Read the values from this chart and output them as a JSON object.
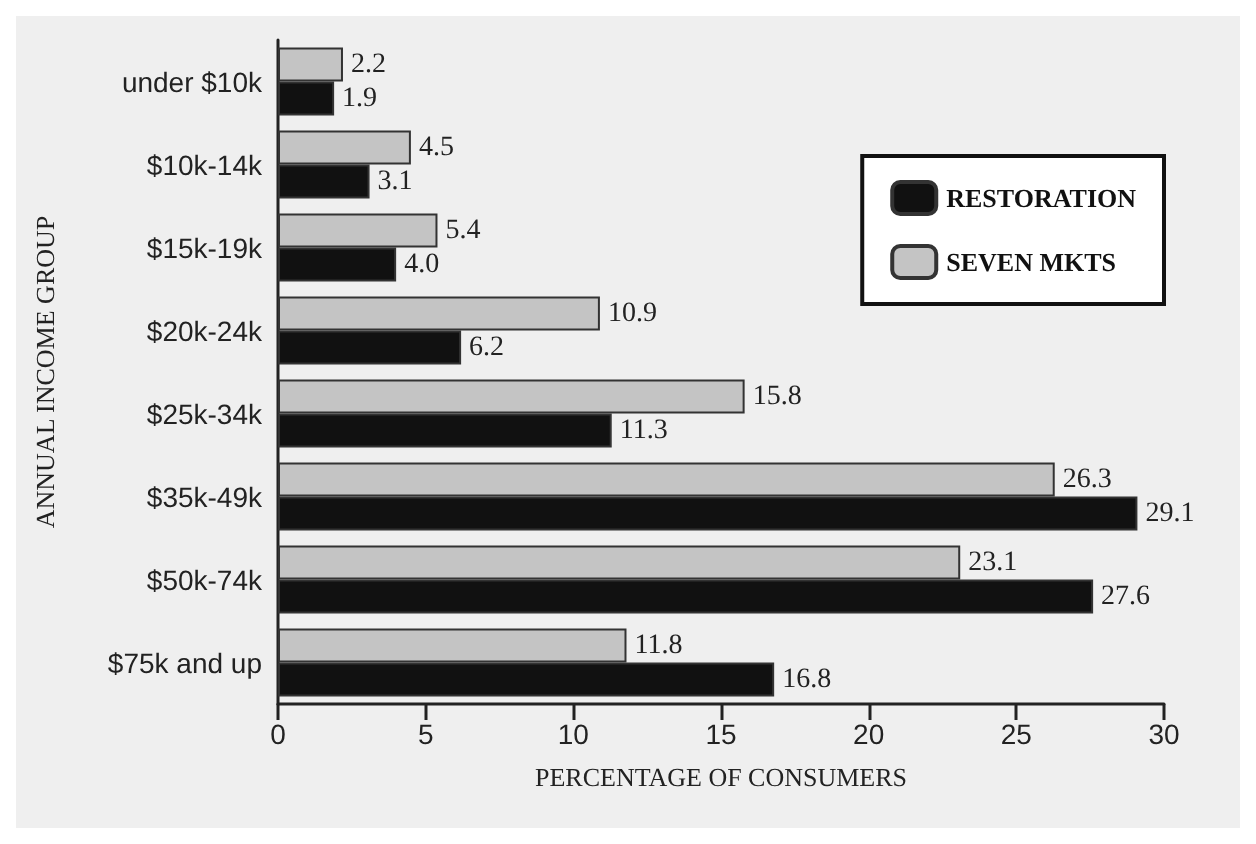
{
  "chart_data": {
    "type": "bar",
    "orientation": "horizontal",
    "xlabel": "PERCENTAGE OF CONSUMERS",
    "ylabel": "ANNUAL INCOME GROUP",
    "categories": [
      "under $10k",
      "$10k-14k",
      "$15k-19k",
      "$20k-24k",
      "$25k-34k",
      "$35k-49k",
      "$50k-74k",
      "$75k and up"
    ],
    "series": [
      {
        "name": "SEVEN MKTS",
        "color": "#c4c4c4",
        "values": [
          2.2,
          4.5,
          5.4,
          10.9,
          15.8,
          26.3,
          23.1,
          11.8
        ],
        "value_labels": [
          "2.2",
          "4.5",
          "5.4",
          "10.9",
          "15.8",
          "26.3",
          "23.1",
          "11.8"
        ]
      },
      {
        "name": "RESTORATION",
        "color": "#111111",
        "values": [
          1.9,
          3.1,
          4.0,
          6.2,
          11.3,
          29.1,
          27.6,
          16.8
        ],
        "value_labels": [
          "1.9",
          "3.1",
          "4.0",
          "6.2",
          "11.3",
          "29.1",
          "27.6",
          "16.8"
        ]
      }
    ],
    "xlim": [
      0,
      30
    ],
    "xticks": [
      0,
      5,
      10,
      15,
      20,
      25,
      30
    ],
    "grid": false,
    "legend": "top right"
  }
}
